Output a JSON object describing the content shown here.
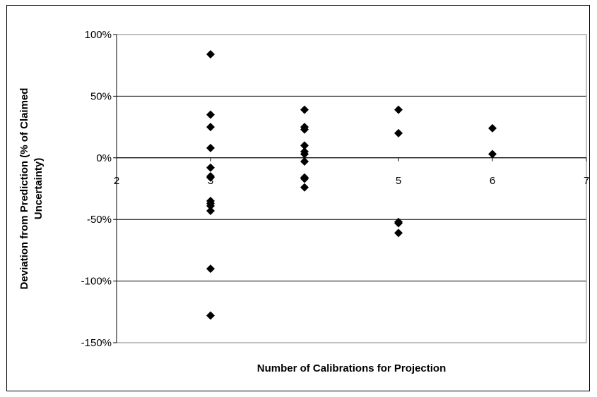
{
  "chart_data": {
    "type": "scatter",
    "title": "",
    "xlabel": "Number of Calibrations for Projection",
    "ylabel_lines": [
      "Deviation from Prediction (% of Claimed",
      "Uncertainty)"
    ],
    "xlim": [
      2,
      7
    ],
    "ylim": [
      -150,
      100
    ],
    "x_ticks": [
      2,
      3,
      4,
      5,
      6,
      7
    ],
    "x_tick_labels": [
      "2",
      "3",
      "",
      "5",
      "6",
      "7"
    ],
    "y_ticks": [
      -150,
      -100,
      -50,
      0,
      50,
      100
    ],
    "y_tick_labels": [
      "-150%",
      "-100%",
      "-50%",
      "0%",
      "50%",
      "100%"
    ],
    "grid": "horizontal",
    "legend": "none",
    "marker": "diamond",
    "colors": {
      "marker": "#000000",
      "grid": "#000000",
      "plot_border": "#808080"
    },
    "series": [
      {
        "points": [
          [
            3,
            84
          ],
          [
            3,
            35
          ],
          [
            3,
            25
          ],
          [
            3,
            8
          ],
          [
            3,
            -8
          ],
          [
            3,
            -15
          ],
          [
            3,
            -16
          ],
          [
            3,
            -35
          ],
          [
            3,
            -37
          ],
          [
            3,
            -39
          ],
          [
            3,
            -43
          ],
          [
            3,
            -90
          ],
          [
            3,
            -128
          ],
          [
            4,
            39
          ],
          [
            4,
            25
          ],
          [
            4,
            23
          ],
          [
            4,
            10
          ],
          [
            4,
            5
          ],
          [
            4,
            3
          ],
          [
            4,
            -3
          ],
          [
            4,
            -16
          ],
          [
            4,
            -17
          ],
          [
            4,
            -24
          ],
          [
            5,
            39
          ],
          [
            5,
            20
          ],
          [
            5,
            -52
          ],
          [
            5,
            -53
          ],
          [
            5,
            -61
          ],
          [
            6,
            24
          ],
          [
            6,
            3
          ]
        ]
      }
    ]
  }
}
